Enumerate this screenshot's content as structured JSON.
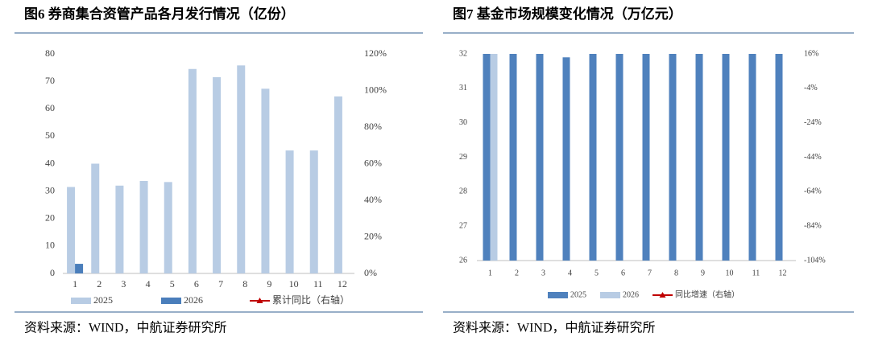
{
  "chart_data": [
    {
      "type": "bar",
      "title": "图6 券商集合资管产品各月发行情况（亿份）",
      "source": "资料来源：WIND，中航证券研究所",
      "categories": [
        "1",
        "2",
        "3",
        "4",
        "5",
        "6",
        "7",
        "8",
        "9",
        "10",
        "11",
        "12"
      ],
      "series": [
        {
          "name": "2025",
          "color": "#b8cce4",
          "values": [
            31.5,
            40,
            32,
            33.7,
            33.3,
            74.5,
            71.5,
            75.8,
            67.3,
            44.8,
            44.8,
            64.5
          ]
        },
        {
          "name": "2026",
          "color": "#4a7ebb",
          "values": [
            3.5,
            null,
            null,
            null,
            null,
            null,
            null,
            null,
            null,
            null,
            null,
            null
          ]
        },
        {
          "name": "累计同比（右轴）",
          "color": "#c00000",
          "axis": "y2",
          "values": [
            null,
            null,
            null,
            null,
            null,
            null,
            null,
            null,
            null,
            null,
            null,
            null
          ]
        }
      ],
      "ylim": [
        0,
        80
      ],
      "yticks": [
        0,
        10,
        20,
        30,
        40,
        50,
        60,
        70,
        80
      ],
      "y2lim": [
        0,
        120
      ],
      "y2ticks": [
        {
          "value": 0,
          "label": "0%"
        },
        {
          "value": 20,
          "label": "20%"
        },
        {
          "value": 40,
          "label": "40%"
        },
        {
          "value": 60,
          "label": "60%"
        },
        {
          "value": 80,
          "label": "80%"
        },
        {
          "value": 100,
          "label": "100%"
        },
        {
          "value": 120,
          "label": "120%"
        }
      ]
    },
    {
      "type": "bar",
      "title": "图7 基金市场规模变化情况（万亿元）",
      "source": "资料来源：WIND，中航证券研究所",
      "categories": [
        "1",
        "2",
        "3",
        "4",
        "5",
        "6",
        "7",
        "8",
        "9",
        "10",
        "11",
        "12"
      ],
      "series": [
        {
          "name": "2025",
          "color": "#4f81bd",
          "values": [
            32,
            32,
            32,
            31.9,
            32,
            32,
            32,
            32,
            32,
            32,
            32,
            32
          ]
        },
        {
          "name": "2026",
          "color": "#b8cce4",
          "values": [
            32,
            null,
            null,
            null,
            null,
            null,
            null,
            null,
            null,
            null,
            null,
            null
          ]
        },
        {
          "name": "同比增速（右轴）",
          "color": "#c00000",
          "axis": "y2",
          "values": [
            null,
            null,
            null,
            null,
            null,
            null,
            null,
            null,
            null,
            null,
            null,
            null
          ]
        }
      ],
      "ylim": [
        26,
        32
      ],
      "yticks": [
        26,
        27,
        28,
        29,
        30,
        31,
        32
      ],
      "y2lim": [
        -104,
        16
      ],
      "y2ticks": [
        {
          "value": 16,
          "label": "16%"
        },
        {
          "value": -4,
          "label": "-4%"
        },
        {
          "value": -24,
          "label": "-24%"
        },
        {
          "value": -44,
          "label": "-44%"
        },
        {
          "value": -64,
          "label": "-64%"
        },
        {
          "value": -84,
          "label": "-84%"
        },
        {
          "value": -104,
          "label": "-104%"
        }
      ]
    }
  ]
}
